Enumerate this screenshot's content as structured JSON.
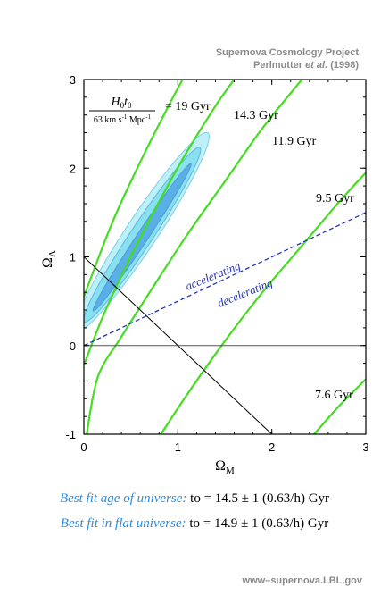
{
  "header": {
    "line1": "Supernova Cosmology Project",
    "line2_prefix": "Perlmutter ",
    "line2_italic": "et al.",
    "line2_suffix": " (1998)"
  },
  "chart_data": {
    "type": "line",
    "xlabel": "ΩM",
    "ylabel": "ΩΛ",
    "xlim": [
      0,
      3
    ],
    "ylim": [
      -1,
      3
    ],
    "x_ticks": [
      "0",
      "1",
      "2",
      "3"
    ],
    "y_ticks": [
      "-1",
      "0",
      "1",
      "2",
      "3"
    ],
    "grid": false,
    "age_formula": {
      "numerator": "H0t0",
      "denominator": "63 km s-1 Mpc-1",
      "equals": "= 19 Gyr"
    },
    "age_contours": [
      {
        "label": "19 Gyr",
        "points": [
          [
            0,
            0.55
          ],
          [
            0.3,
            1.38
          ],
          [
            0.6,
            2.07
          ],
          [
            0.9,
            2.7
          ],
          [
            1.05,
            3.0
          ]
        ]
      },
      {
        "label": "14.3 Gyr",
        "points": [
          [
            0,
            -0.22
          ],
          [
            0.2,
            0.32
          ],
          [
            0.45,
            0.9
          ],
          [
            0.75,
            1.52
          ],
          [
            1.05,
            2.1
          ],
          [
            1.4,
            2.7
          ],
          [
            1.6,
            3.0
          ]
        ]
      },
      {
        "label": "11.9 Gyr",
        "points": [
          [
            0.03,
            -1.0
          ],
          [
            0.15,
            -0.35
          ],
          [
            0.4,
            0.1
          ],
          [
            0.7,
            0.6
          ],
          [
            1.1,
            1.25
          ],
          [
            1.5,
            1.85
          ],
          [
            1.9,
            2.45
          ],
          [
            2.32,
            3.0
          ]
        ]
      },
      {
        "label": "9.5 Gyr",
        "points": [
          [
            0.82,
            -1.0
          ],
          [
            1.1,
            -0.55
          ],
          [
            1.5,
            0.05
          ],
          [
            1.9,
            0.6
          ],
          [
            2.3,
            1.1
          ],
          [
            2.7,
            1.6
          ],
          [
            3.0,
            1.95
          ]
        ]
      },
      {
        "label": "7.6 Gyr",
        "points": [
          [
            2.45,
            -1.0
          ],
          [
            2.7,
            -0.7
          ],
          [
            3.0,
            -0.38
          ]
        ]
      }
    ],
    "age_labels": [
      "= 19 Gyr",
      "14.3 Gyr",
      "11.9 Gyr",
      "9.5 Gyr",
      "7.6 Gyr"
    ],
    "confidence_regions": [
      {
        "level": "outer",
        "color": "#bfeff8",
        "edge": "#7ad0ea",
        "center": [
          0.62,
          1.28
        ],
        "semi_major": 1.32,
        "semi_minor": 0.17,
        "angle_deg": 58
      },
      {
        "level": "middle",
        "color": "#88e0f0",
        "edge": "#5cb8dc",
        "center": [
          0.62,
          1.25
        ],
        "semi_major": 1.16,
        "semi_minor": 0.12,
        "angle_deg": 58
      },
      {
        "level": "inner",
        "color": "#5ab0e6",
        "edge": "#4a9ad8",
        "center": [
          0.62,
          1.22
        ],
        "semi_major": 0.98,
        "semi_minor": 0.06,
        "angle_deg": 58
      }
    ],
    "accel_line": {
      "points": [
        [
          0,
          0
        ],
        [
          3,
          1.5
        ]
      ],
      "color": "#2233bb",
      "label_above": "accelerating",
      "label_below": "decelerating"
    },
    "flat_line": {
      "points": [
        [
          0,
          1
        ],
        [
          2,
          -1
        ]
      ],
      "color": "#000000"
    },
    "zero_line": {
      "y": 0
    }
  },
  "footer": {
    "line1_label": "Best fit age of universe:",
    "line1_value": "to = 14.5 ± 1  (0.63/h)  Gyr",
    "line2_label": "Best fit in flat universe:",
    "line2_value": "to = 14.9 ± 1  (0.63/h)  Gyr",
    "url": "www–supernova.LBL.gov"
  },
  "colors": {
    "contour": "#44dd22",
    "accent_text": "#2a8ce0",
    "muted_text": "#8a8a8a"
  }
}
